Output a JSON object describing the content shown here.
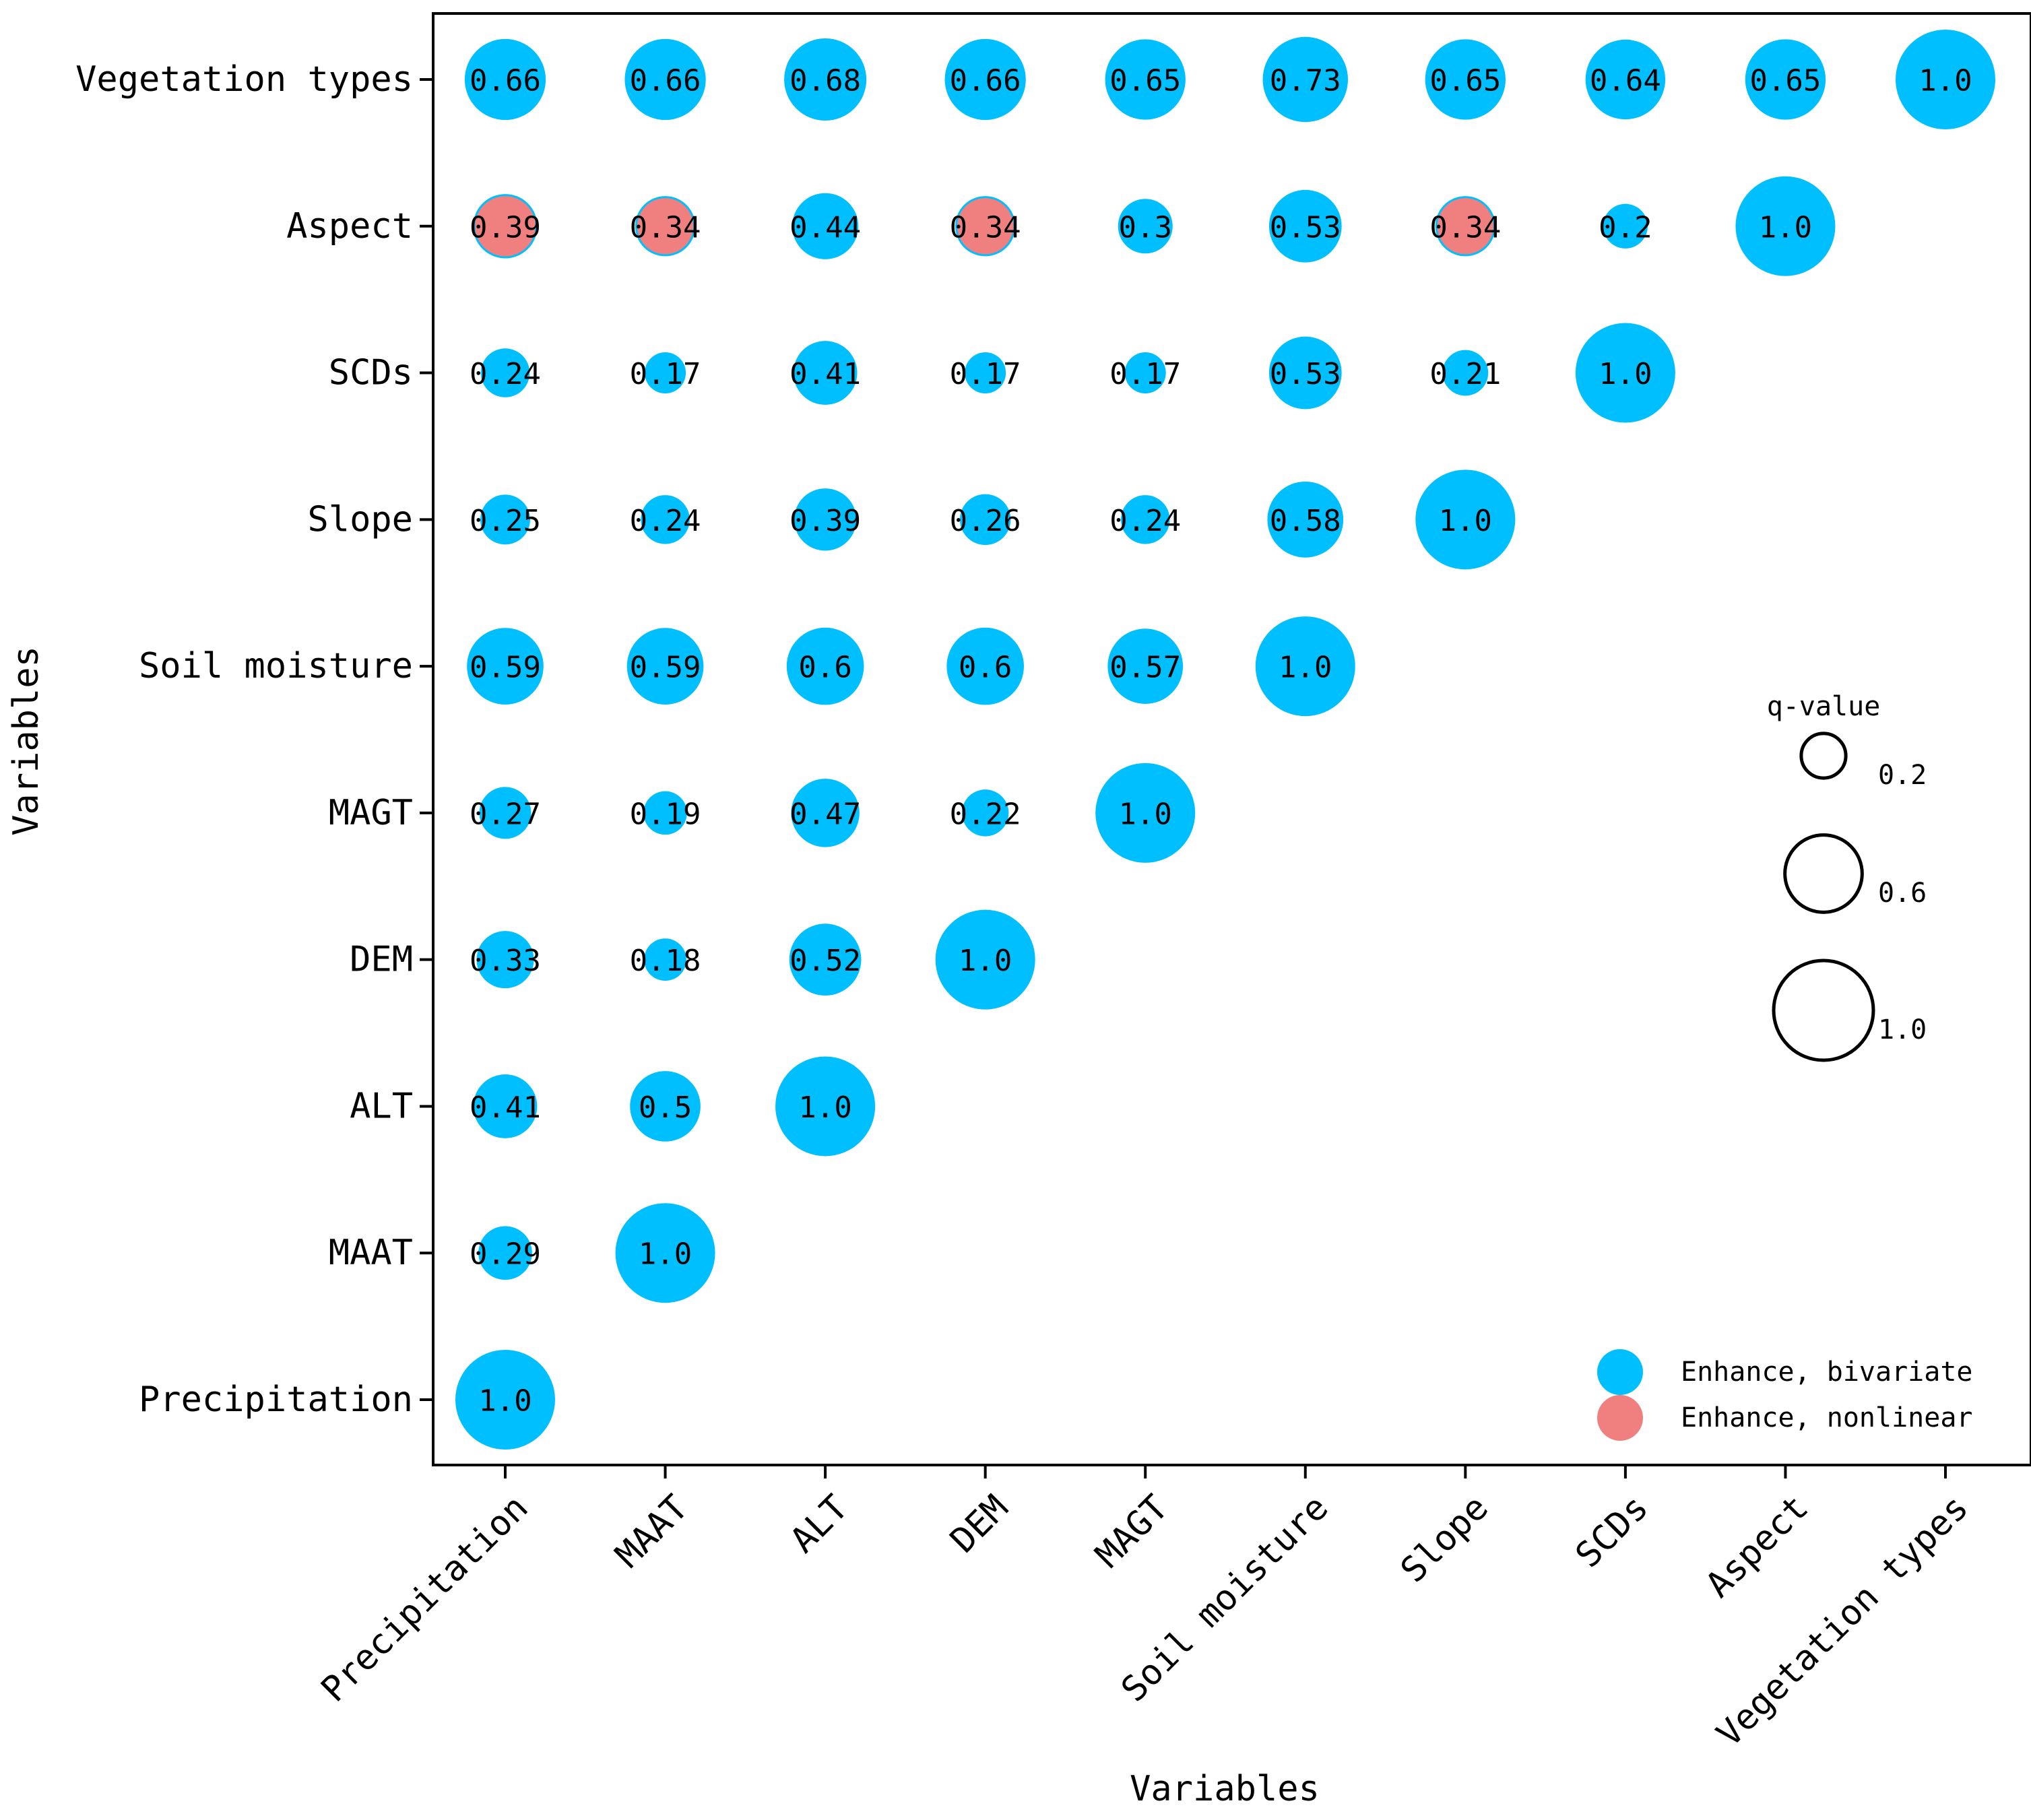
{
  "chart_data": {
    "type": "bubble-matrix",
    "xlabel": "Variables",
    "ylabel": "Variables",
    "variables": [
      "Precipitation",
      "MAAT",
      "ALT",
      "DEM",
      "MAGT",
      "Soil moisture",
      "Slope",
      "SCDs",
      "Aspect",
      "Vegetation types"
    ],
    "cells": [
      {
        "row": "Precipitation",
        "col": "Precipitation",
        "value": 1.0,
        "label": "1.0",
        "type": "bivariate"
      },
      {
        "row": "MAAT",
        "col": "Precipitation",
        "value": 0.29,
        "label": "0.29",
        "type": "bivariate"
      },
      {
        "row": "MAAT",
        "col": "MAAT",
        "value": 1.0,
        "label": "1.0",
        "type": "bivariate"
      },
      {
        "row": "ALT",
        "col": "Precipitation",
        "value": 0.41,
        "label": "0.41",
        "type": "bivariate"
      },
      {
        "row": "ALT",
        "col": "MAAT",
        "value": 0.5,
        "label": "0.5",
        "type": "bivariate"
      },
      {
        "row": "ALT",
        "col": "ALT",
        "value": 1.0,
        "label": "1.0",
        "type": "bivariate"
      },
      {
        "row": "DEM",
        "col": "Precipitation",
        "value": 0.33,
        "label": "0.33",
        "type": "bivariate"
      },
      {
        "row": "DEM",
        "col": "MAAT",
        "value": 0.18,
        "label": "0.18",
        "type": "bivariate"
      },
      {
        "row": "DEM",
        "col": "ALT",
        "value": 0.52,
        "label": "0.52",
        "type": "bivariate"
      },
      {
        "row": "DEM",
        "col": "DEM",
        "value": 1.0,
        "label": "1.0",
        "type": "bivariate"
      },
      {
        "row": "MAGT",
        "col": "Precipitation",
        "value": 0.27,
        "label": "0.27",
        "type": "bivariate"
      },
      {
        "row": "MAGT",
        "col": "MAAT",
        "value": 0.19,
        "label": "0.19",
        "type": "bivariate"
      },
      {
        "row": "MAGT",
        "col": "ALT",
        "value": 0.47,
        "label": "0.47",
        "type": "bivariate"
      },
      {
        "row": "MAGT",
        "col": "DEM",
        "value": 0.22,
        "label": "0.22",
        "type": "bivariate"
      },
      {
        "row": "MAGT",
        "col": "MAGT",
        "value": 1.0,
        "label": "1.0",
        "type": "bivariate"
      },
      {
        "row": "Soil moisture",
        "col": "Precipitation",
        "value": 0.59,
        "label": "0.59",
        "type": "bivariate"
      },
      {
        "row": "Soil moisture",
        "col": "MAAT",
        "value": 0.59,
        "label": "0.59",
        "type": "bivariate"
      },
      {
        "row": "Soil moisture",
        "col": "ALT",
        "value": 0.6,
        "label": "0.6",
        "type": "bivariate"
      },
      {
        "row": "Soil moisture",
        "col": "DEM",
        "value": 0.6,
        "label": "0.6",
        "type": "bivariate"
      },
      {
        "row": "Soil moisture",
        "col": "MAGT",
        "value": 0.57,
        "label": "0.57",
        "type": "bivariate"
      },
      {
        "row": "Soil moisture",
        "col": "Soil moisture",
        "value": 1.0,
        "label": "1.0",
        "type": "bivariate"
      },
      {
        "row": "Slope",
        "col": "Precipitation",
        "value": 0.25,
        "label": "0.25",
        "type": "bivariate"
      },
      {
        "row": "Slope",
        "col": "MAAT",
        "value": 0.24,
        "label": "0.24",
        "type": "bivariate"
      },
      {
        "row": "Slope",
        "col": "ALT",
        "value": 0.39,
        "label": "0.39",
        "type": "bivariate"
      },
      {
        "row": "Slope",
        "col": "DEM",
        "value": 0.26,
        "label": "0.26",
        "type": "bivariate"
      },
      {
        "row": "Slope",
        "col": "MAGT",
        "value": 0.24,
        "label": "0.24",
        "type": "bivariate"
      },
      {
        "row": "Slope",
        "col": "Soil moisture",
        "value": 0.58,
        "label": "0.58",
        "type": "bivariate"
      },
      {
        "row": "Slope",
        "col": "Slope",
        "value": 1.0,
        "label": "1.0",
        "type": "bivariate"
      },
      {
        "row": "SCDs",
        "col": "Precipitation",
        "value": 0.24,
        "label": "0.24",
        "type": "bivariate"
      },
      {
        "row": "SCDs",
        "col": "MAAT",
        "value": 0.17,
        "label": "0.17",
        "type": "bivariate"
      },
      {
        "row": "SCDs",
        "col": "ALT",
        "value": 0.41,
        "label": "0.41",
        "type": "bivariate"
      },
      {
        "row": "SCDs",
        "col": "DEM",
        "value": 0.17,
        "label": "0.17",
        "type": "bivariate"
      },
      {
        "row": "SCDs",
        "col": "MAGT",
        "value": 0.17,
        "label": "0.17",
        "type": "bivariate"
      },
      {
        "row": "SCDs",
        "col": "Soil moisture",
        "value": 0.53,
        "label": "0.53",
        "type": "bivariate"
      },
      {
        "row": "SCDs",
        "col": "Slope",
        "value": 0.21,
        "label": "0.21",
        "type": "bivariate"
      },
      {
        "row": "SCDs",
        "col": "SCDs",
        "value": 1.0,
        "label": "1.0",
        "type": "bivariate"
      },
      {
        "row": "Aspect",
        "col": "Precipitation",
        "value": 0.39,
        "label": "0.39",
        "type": "nonlinear"
      },
      {
        "row": "Aspect",
        "col": "MAAT",
        "value": 0.34,
        "label": "0.34",
        "type": "nonlinear"
      },
      {
        "row": "Aspect",
        "col": "ALT",
        "value": 0.44,
        "label": "0.44",
        "type": "bivariate"
      },
      {
        "row": "Aspect",
        "col": "DEM",
        "value": 0.34,
        "label": "0.34",
        "type": "nonlinear"
      },
      {
        "row": "Aspect",
        "col": "MAGT",
        "value": 0.3,
        "label": "0.3",
        "type": "bivariate"
      },
      {
        "row": "Aspect",
        "col": "Soil moisture",
        "value": 0.53,
        "label": "0.53",
        "type": "bivariate"
      },
      {
        "row": "Aspect",
        "col": "Slope",
        "value": 0.34,
        "label": "0.34",
        "type": "nonlinear"
      },
      {
        "row": "Aspect",
        "col": "SCDs",
        "value": 0.2,
        "label": "0.2",
        "type": "bivariate"
      },
      {
        "row": "Aspect",
        "col": "Aspect",
        "value": 1.0,
        "label": "1.0",
        "type": "bivariate"
      },
      {
        "row": "Vegetation types",
        "col": "Precipitation",
        "value": 0.66,
        "label": "0.66",
        "type": "bivariate"
      },
      {
        "row": "Vegetation types",
        "col": "MAAT",
        "value": 0.66,
        "label": "0.66",
        "type": "bivariate"
      },
      {
        "row": "Vegetation types",
        "col": "ALT",
        "value": 0.68,
        "label": "0.68",
        "type": "bivariate"
      },
      {
        "row": "Vegetation types",
        "col": "DEM",
        "value": 0.66,
        "label": "0.66",
        "type": "bivariate"
      },
      {
        "row": "Vegetation types",
        "col": "MAGT",
        "value": 0.65,
        "label": "0.65",
        "type": "bivariate"
      },
      {
        "row": "Vegetation types",
        "col": "Soil moisture",
        "value": 0.73,
        "label": "0.73",
        "type": "bivariate"
      },
      {
        "row": "Vegetation types",
        "col": "Slope",
        "value": 0.65,
        "label": "0.65",
        "type": "bivariate"
      },
      {
        "row": "Vegetation types",
        "col": "SCDs",
        "value": 0.64,
        "label": "0.64",
        "type": "bivariate"
      },
      {
        "row": "Vegetation types",
        "col": "Aspect",
        "value": 0.65,
        "label": "0.65",
        "type": "bivariate"
      },
      {
        "row": "Vegetation types",
        "col": "Vegetation types",
        "value": 1.0,
        "label": "1.0",
        "type": "bivariate"
      }
    ],
    "size_legend": {
      "title": "q-value",
      "items": [
        {
          "value": 0.2,
          "label": "0.2"
        },
        {
          "value": 0.6,
          "label": "0.6"
        },
        {
          "value": 1.0,
          "label": "1.0"
        }
      ]
    },
    "color_legend": [
      {
        "type": "bivariate",
        "label": "Enhance, bivariate",
        "color": "#00BFFF"
      },
      {
        "type": "nonlinear",
        "label": "Enhance, nonlinear",
        "color": "#F08080"
      }
    ],
    "legend_position": "bottom-right"
  }
}
